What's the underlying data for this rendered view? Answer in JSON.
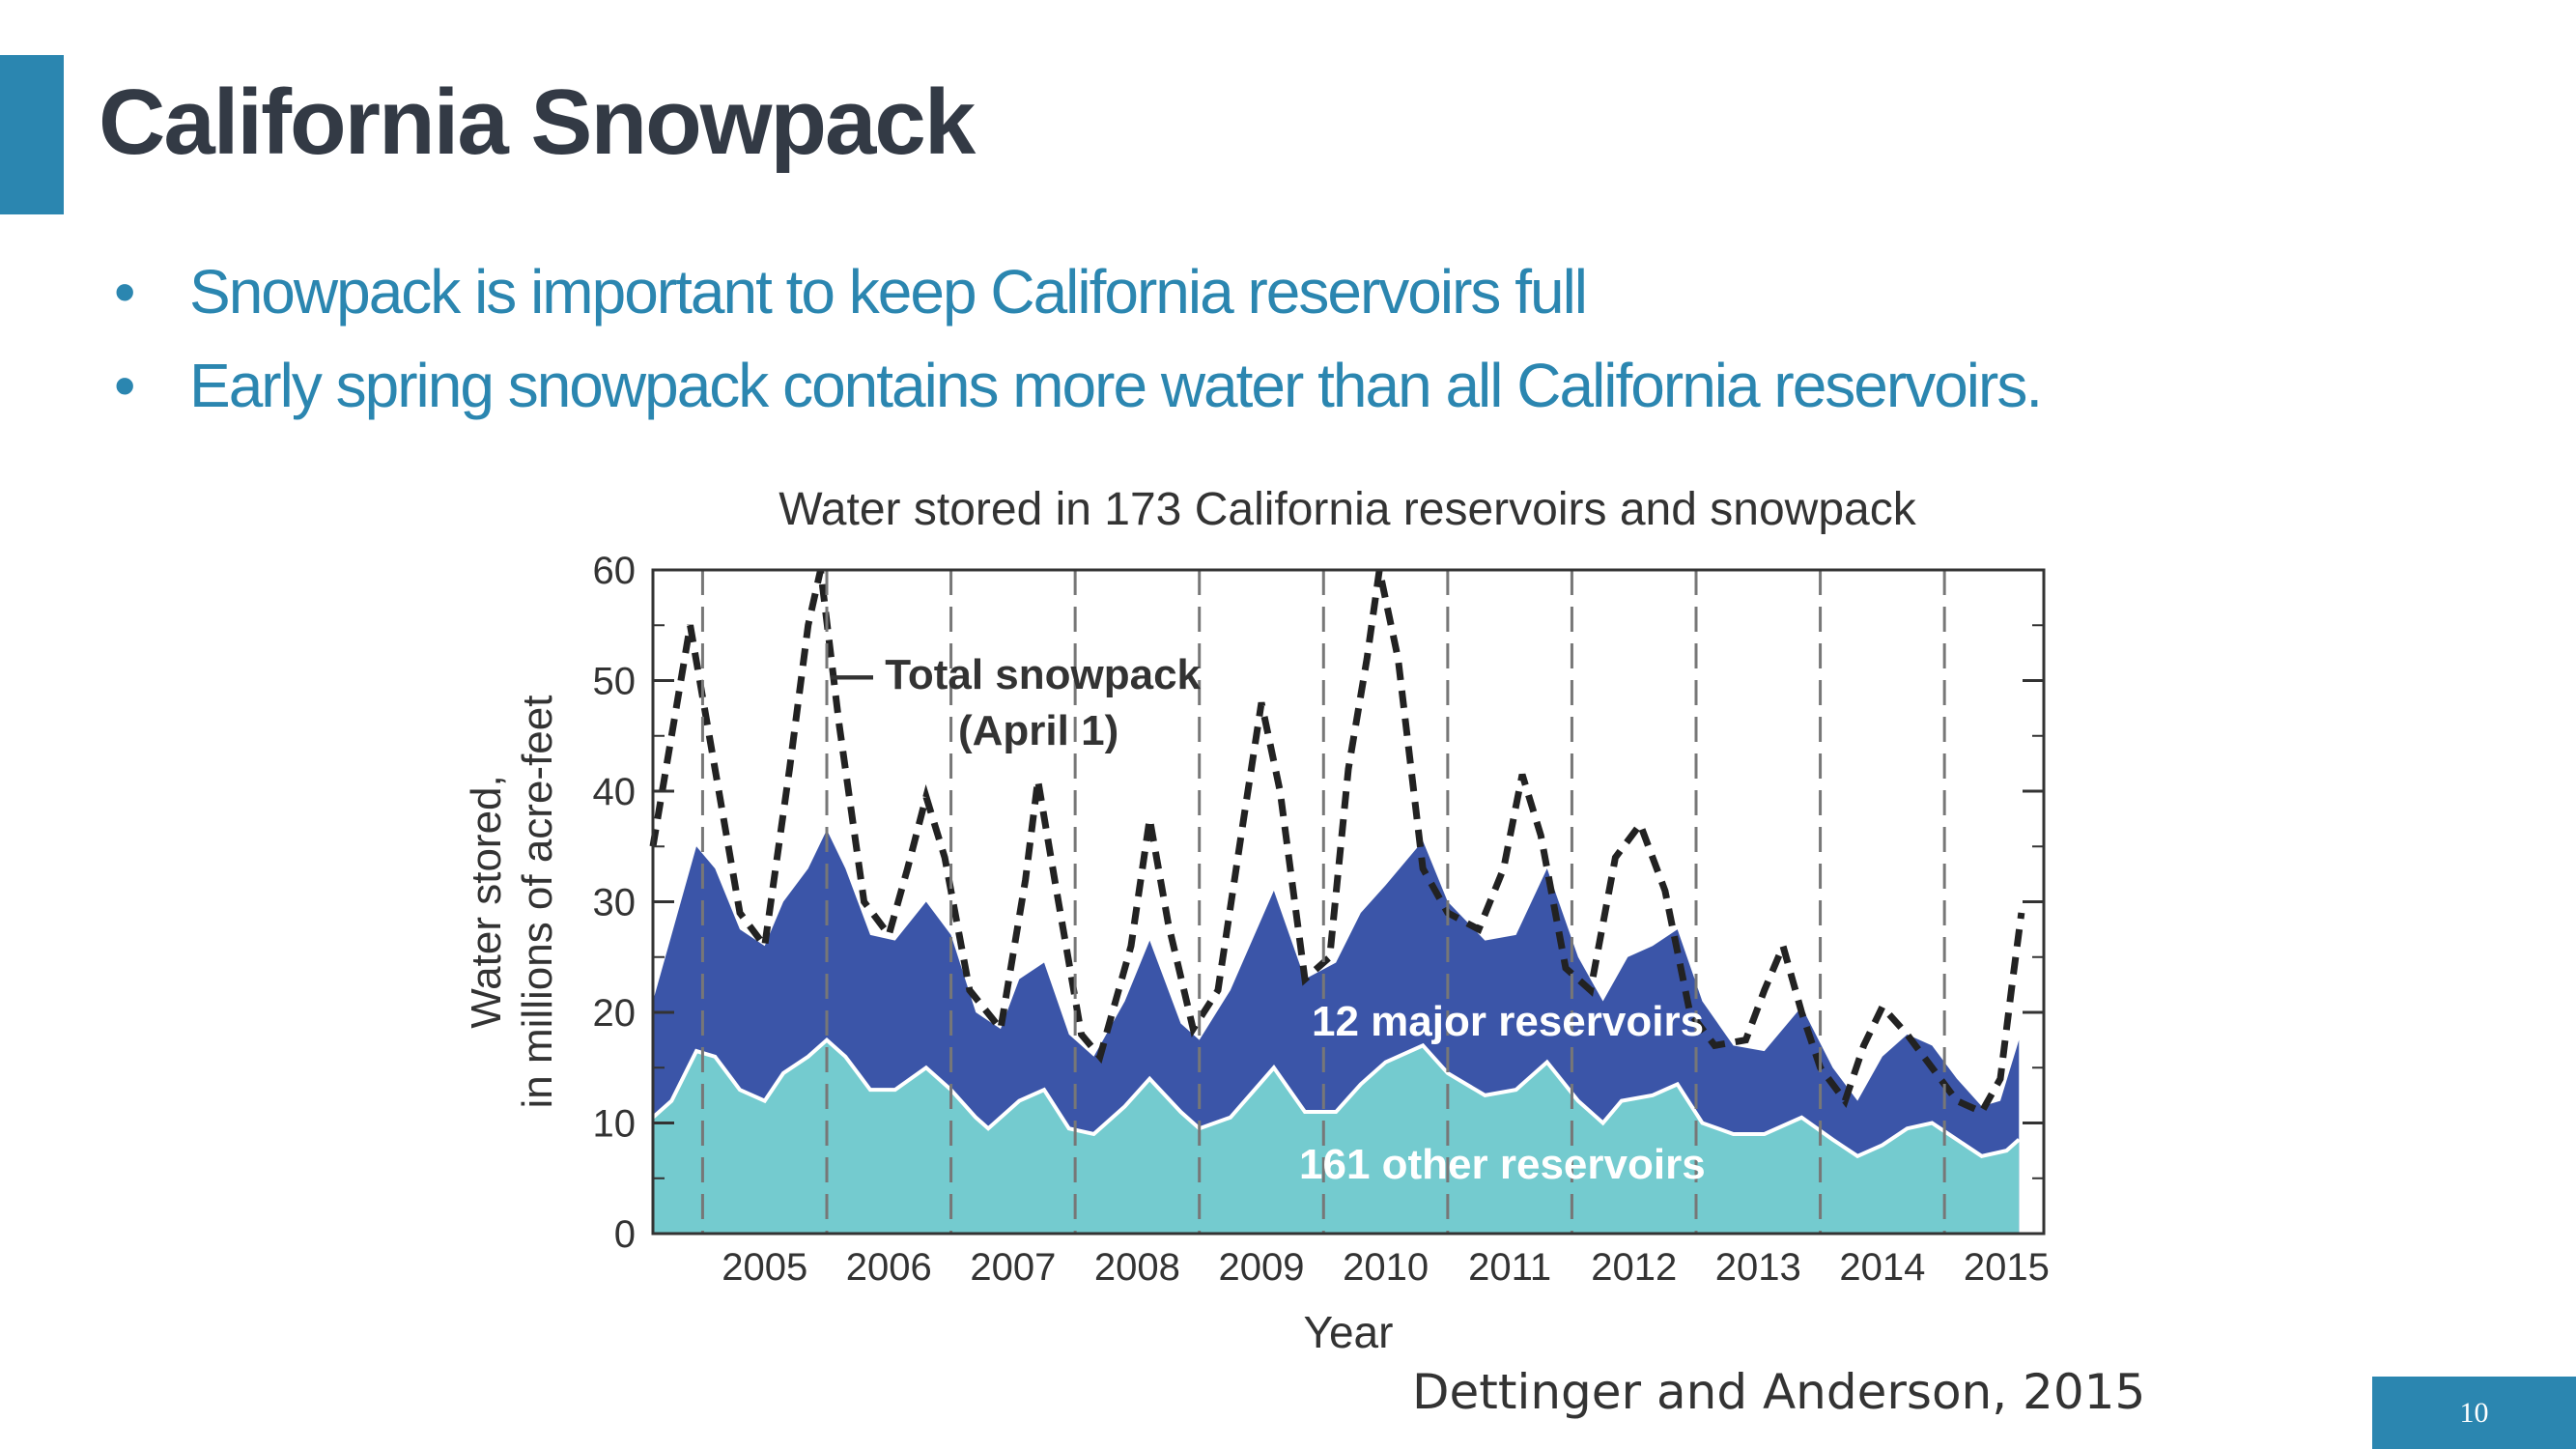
{
  "slide": {
    "title": "California Snowpack",
    "bullets": [
      "Snowpack is important to keep California reservoirs full",
      "Early spring snowpack contains more water than all California reservoirs."
    ],
    "bullet_symbol": "•",
    "citation": "Dettinger and Anderson, 2015",
    "page_number": "10",
    "colors": {
      "accent": "#2b86b0",
      "title": "#333a45",
      "major_reservoirs": "#3b55a8",
      "other_reservoirs": "#74cbcf",
      "snowpack_line": "#222222"
    }
  },
  "chart_data": {
    "type": "area",
    "title": "Water stored in 173 California reservoirs and snowpack",
    "xlabel": "Year",
    "ylabel": "Water stored, in millions of acre-feet",
    "ylabel_lines": [
      "Water stored,",
      "in millions of acre-feet"
    ],
    "ylim": [
      0,
      60
    ],
    "xlim": [
      2004.6,
      2015.8
    ],
    "yticks": [
      0,
      10,
      20,
      30,
      40,
      50,
      60
    ],
    "xtick_labels": [
      "2005",
      "2006",
      "2007",
      "2008",
      "2009",
      "2010",
      "2011",
      "2012",
      "2013",
      "2014",
      "2015"
    ],
    "year_boundaries": [
      2005,
      2006,
      2007,
      2008,
      2009,
      2010,
      2011,
      2012,
      2013,
      2014,
      2015
    ],
    "grid": "dashed vertical lines at year boundaries",
    "annotations": {
      "snowpack_label": [
        "— Total snowpack",
        "(April 1)"
      ],
      "major_label": "12 major reservoirs",
      "other_label": "161 other reservoirs"
    },
    "series": [
      {
        "name": "161 other reservoirs",
        "style": "stacked area (bottom)",
        "points": [
          [
            2004.6,
            10.5
          ],
          [
            2004.75,
            12
          ],
          [
            2004.95,
            16.5
          ],
          [
            2005.1,
            16
          ],
          [
            2005.3,
            13
          ],
          [
            2005.5,
            12
          ],
          [
            2005.65,
            14.5
          ],
          [
            2005.85,
            16
          ],
          [
            2006.0,
            17.5
          ],
          [
            2006.15,
            16
          ],
          [
            2006.35,
            13
          ],
          [
            2006.55,
            13
          ],
          [
            2006.8,
            15
          ],
          [
            2007.0,
            13
          ],
          [
            2007.2,
            10.5
          ],
          [
            2007.3,
            9.5
          ],
          [
            2007.55,
            12
          ],
          [
            2007.75,
            13
          ],
          [
            2007.95,
            9.5
          ],
          [
            2008.15,
            9
          ],
          [
            2008.4,
            11.5
          ],
          [
            2008.6,
            14
          ],
          [
            2008.85,
            11
          ],
          [
            2009.0,
            9.5
          ],
          [
            2009.25,
            10.5
          ],
          [
            2009.6,
            15
          ],
          [
            2009.85,
            11
          ],
          [
            2010.1,
            11
          ],
          [
            2010.3,
            13.5
          ],
          [
            2010.5,
            15.5
          ],
          [
            2010.8,
            17
          ],
          [
            2011.0,
            14.5
          ],
          [
            2011.3,
            12.5
          ],
          [
            2011.55,
            13
          ],
          [
            2011.8,
            15.5
          ],
          [
            2012.05,
            12
          ],
          [
            2012.25,
            10
          ],
          [
            2012.4,
            12
          ],
          [
            2012.65,
            12.5
          ],
          [
            2012.85,
            13.5
          ],
          [
            2013.05,
            10
          ],
          [
            2013.3,
            9
          ],
          [
            2013.55,
            9
          ],
          [
            2013.85,
            10.5
          ],
          [
            2014.1,
            8.5
          ],
          [
            2014.3,
            7
          ],
          [
            2014.5,
            8
          ],
          [
            2014.7,
            9.5
          ],
          [
            2014.9,
            10
          ],
          [
            2015.1,
            8.5
          ],
          [
            2015.3,
            7
          ],
          [
            2015.5,
            7.5
          ],
          [
            2015.6,
            8.5
          ]
        ]
      },
      {
        "name": "12 major reservoirs",
        "style": "stacked area (top edge = total reservoir storage)",
        "points": [
          [
            2004.6,
            21
          ],
          [
            2004.75,
            27
          ],
          [
            2004.95,
            35
          ],
          [
            2005.1,
            33
          ],
          [
            2005.3,
            27.5
          ],
          [
            2005.5,
            26
          ],
          [
            2005.65,
            30
          ],
          [
            2005.85,
            33
          ],
          [
            2006.0,
            36.5
          ],
          [
            2006.15,
            33
          ],
          [
            2006.35,
            27
          ],
          [
            2006.55,
            26.5
          ],
          [
            2006.8,
            30
          ],
          [
            2007.0,
            27
          ],
          [
            2007.2,
            20
          ],
          [
            2007.4,
            18.5
          ],
          [
            2007.55,
            23
          ],
          [
            2007.75,
            24.5
          ],
          [
            2007.95,
            18
          ],
          [
            2008.15,
            16
          ],
          [
            2008.4,
            21
          ],
          [
            2008.6,
            26.5
          ],
          [
            2008.85,
            19
          ],
          [
            2009.0,
            17.5
          ],
          [
            2009.25,
            22
          ],
          [
            2009.6,
            31
          ],
          [
            2009.85,
            23
          ],
          [
            2010.1,
            24.5
          ],
          [
            2010.3,
            29
          ],
          [
            2010.5,
            31.5
          ],
          [
            2010.8,
            35.5
          ],
          [
            2011.0,
            30
          ],
          [
            2011.3,
            26.5
          ],
          [
            2011.55,
            27
          ],
          [
            2011.8,
            33
          ],
          [
            2012.05,
            25
          ],
          [
            2012.25,
            21
          ],
          [
            2012.45,
            25
          ],
          [
            2012.65,
            26
          ],
          [
            2012.85,
            27.5
          ],
          [
            2013.05,
            21
          ],
          [
            2013.3,
            17
          ],
          [
            2013.55,
            16.5
          ],
          [
            2013.85,
            20.5
          ],
          [
            2014.1,
            15
          ],
          [
            2014.3,
            12
          ],
          [
            2014.5,
            16
          ],
          [
            2014.7,
            18
          ],
          [
            2014.9,
            17
          ],
          [
            2015.1,
            14
          ],
          [
            2015.3,
            11.5
          ],
          [
            2015.45,
            12
          ],
          [
            2015.6,
            17.5
          ]
        ]
      },
      {
        "name": "Total snowpack (April 1)",
        "style": "dashed line (total of reservoirs plus snowpack)",
        "points": [
          [
            2004.6,
            35
          ],
          [
            2004.75,
            45
          ],
          [
            2004.9,
            55
          ],
          [
            2005.1,
            42
          ],
          [
            2005.3,
            29
          ],
          [
            2005.5,
            26
          ],
          [
            2005.7,
            42
          ],
          [
            2005.85,
            55
          ],
          [
            2005.95,
            60
          ],
          [
            2006.1,
            46
          ],
          [
            2006.3,
            30
          ],
          [
            2006.5,
            27
          ],
          [
            2006.65,
            33
          ],
          [
            2006.8,
            39.5
          ],
          [
            2006.95,
            34
          ],
          [
            2007.15,
            22
          ],
          [
            2007.4,
            18.5
          ],
          [
            2007.6,
            32
          ],
          [
            2007.7,
            41
          ],
          [
            2007.85,
            31
          ],
          [
            2008.05,
            18
          ],
          [
            2008.2,
            16
          ],
          [
            2008.45,
            26
          ],
          [
            2008.6,
            37.5
          ],
          [
            2008.75,
            28
          ],
          [
            2008.95,
            18.5
          ],
          [
            2009.15,
            22
          ],
          [
            2009.35,
            37
          ],
          [
            2009.5,
            48
          ],
          [
            2009.65,
            40
          ],
          [
            2009.85,
            23
          ],
          [
            2010.05,
            25
          ],
          [
            2010.2,
            42
          ],
          [
            2010.35,
            52
          ],
          [
            2010.45,
            60
          ],
          [
            2010.6,
            52
          ],
          [
            2010.8,
            33
          ],
          [
            2011.0,
            29
          ],
          [
            2011.25,
            27.5
          ],
          [
            2011.45,
            33
          ],
          [
            2011.6,
            41.5
          ],
          [
            2011.75,
            36
          ],
          [
            2011.95,
            24
          ],
          [
            2012.15,
            22
          ],
          [
            2012.35,
            34
          ],
          [
            2012.55,
            37
          ],
          [
            2012.75,
            31
          ],
          [
            2012.95,
            20
          ],
          [
            2013.15,
            17
          ],
          [
            2013.4,
            17.5
          ],
          [
            2013.55,
            22
          ],
          [
            2013.7,
            26
          ],
          [
            2013.85,
            20
          ],
          [
            2014.0,
            15
          ],
          [
            2014.2,
            12
          ],
          [
            2014.35,
            17
          ],
          [
            2014.5,
            20.5
          ],
          [
            2014.7,
            18
          ],
          [
            2014.9,
            15
          ],
          [
            2015.1,
            12
          ],
          [
            2015.3,
            11
          ],
          [
            2015.45,
            14
          ],
          [
            2015.55,
            23
          ],
          [
            2015.62,
            29
          ]
        ]
      }
    ]
  }
}
